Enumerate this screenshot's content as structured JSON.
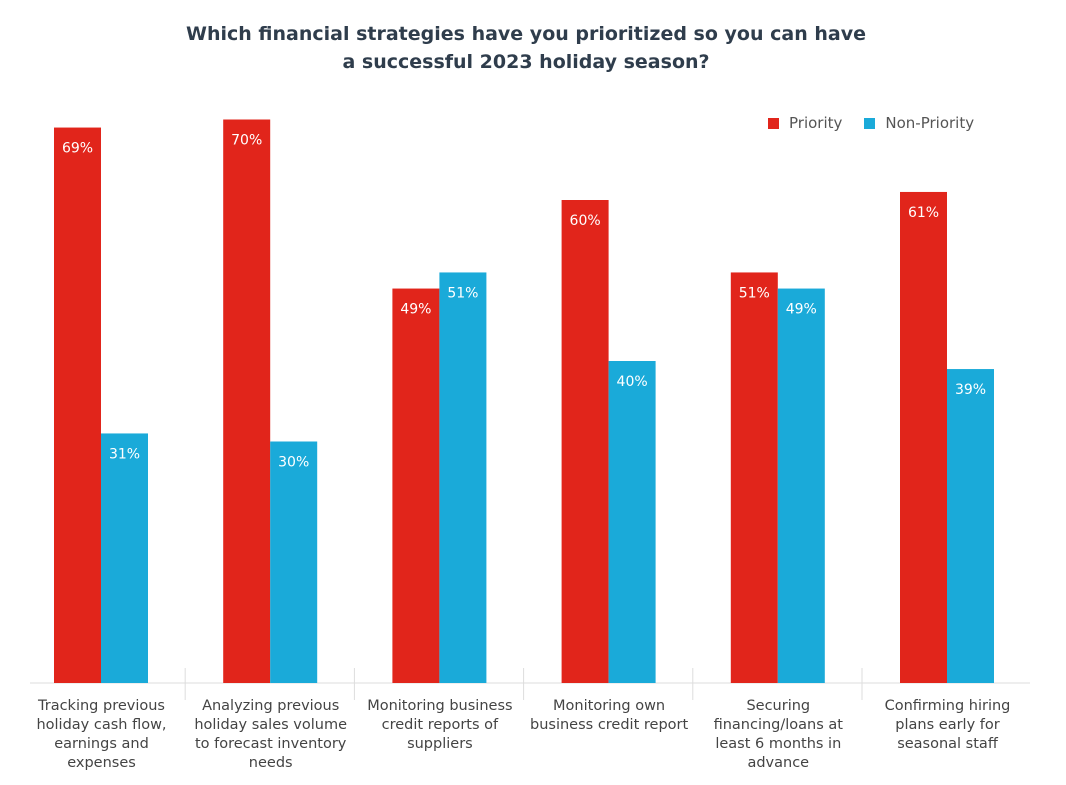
{
  "chart_data": {
    "type": "bar",
    "title": "Which financial strategies have you prioritized so you can have a successful 2023 holiday season?",
    "title_lines": [
      "Which financial strategies have you prioritized so you can have",
      "a successful 2023 holiday season?"
    ],
    "categories": [
      "Tracking previous holiday cash flow, earnings and expenses",
      "Analyzing previous holiday sales volume to forecast inventory needs",
      "Monitoring business credit reports of suppliers",
      "Monitoring own business credit report",
      "Securing financing/loans at least 6 months in advance",
      "Confirming hiring plans early for seasonal staff"
    ],
    "series": [
      {
        "name": "Priority",
        "color": "#e1251b",
        "values": [
          69,
          70,
          49,
          60,
          51,
          61
        ]
      },
      {
        "name": "Non-Priority",
        "color": "#1aaad9",
        "values": [
          31,
          30,
          51,
          40,
          49,
          39
        ]
      }
    ],
    "unit": "%",
    "ylim": [
      0,
      100
    ],
    "grid": false,
    "legend_position": "top-right"
  }
}
